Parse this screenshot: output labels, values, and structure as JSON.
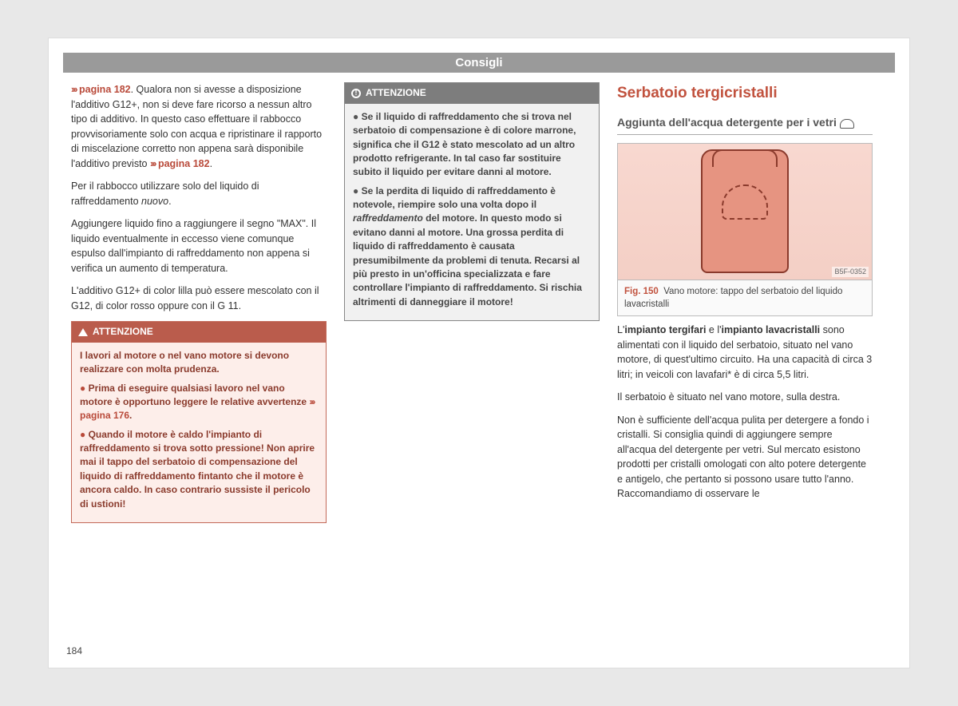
{
  "header": {
    "title": "Consigli"
  },
  "pageNumber": "184",
  "col1": {
    "p1_linkref": "pagina 182",
    "p1_rest": ". Qualora non si avesse a disposizione l'additivo G12+, non si deve fare ricorso a nessun altro tipo di additivo. In questo caso effettuare il rabbocco provvisoriamente solo con acqua e ripristinare il rapporto di miscelazione corretto non appena sarà disponibile l'additivo previsto ",
    "p1_linkref2": "pagina 182",
    "p2a": "Per il rabbocco utilizzare solo del liquido di raffreddamento ",
    "p2b": "nuovo",
    "p2c": ".",
    "p3": "Aggiungere liquido fino a raggiungere il segno \"MAX\". Il liquido eventualmente in eccesso viene comunque espulso dall'impianto di raffreddamento non appena si verifica un aumento di temperatura.",
    "p4": "L'additivo G12+ di color lilla può essere mescolato con il G12, di color rosso oppure con il G 11.",
    "warn": {
      "title": "ATTENZIONE",
      "intro": "I lavori al motore o nel vano motore si devono realizzare con molta prudenza.",
      "b1a": "Prima di eseguire qualsiasi lavoro nel vano motore è opportuno leggere le relative avvertenze ",
      "b1link": "pagina 176",
      "b1b": ".",
      "b2": "Quando il motore è caldo l'impianto di raffreddamento si trova sotto pressione! Non aprire mai il tappo del serbatoio di compensazione del liquido di raffreddamento fintanto che il motore è ancora caldo. In caso contrario sussiste il pericolo di ustioni!"
    }
  },
  "col2": {
    "note": {
      "title": "ATTENZIONE",
      "b1": "Se il liquido di raffreddamento che si trova nel serbatoio di compensazione è di colore marrone, significa che il G12 è stato mescolato ad un altro prodotto refrigerante. In tal caso far sostituire subito il liquido per evitare danni al motore.",
      "b2a": "Se la perdita di liquido di raffreddamento è notevole, riempire solo una volta dopo il ",
      "b2i": "raffreddamento",
      "b2b": " del motore. In questo modo si evitano danni al motore. Una grossa perdita di liquido di raffreddamento è causata presumibilmente da problemi di tenuta. Recarsi al più presto in un'officina specializzata e fare controllare l'impianto di raffreddamento. Si rischia altrimenti di danneggiare il motore!"
    }
  },
  "col3": {
    "section": "Serbatoio tergicristalli",
    "subtitle": "Aggiunta dell'acqua detergente per i vetri",
    "figure": {
      "code": "B5F-0352",
      "num": "Fig. 150",
      "caption": "Vano motore: tappo del serbatoio del liquido lavacristalli"
    },
    "p1a": "L'",
    "p1b": "impianto tergifari",
    "p1c": " e l'",
    "p1d": "impianto lavacristalli",
    "p1e": " sono alimentati con il liquido del serbatoio, situato nel vano motore, di quest'ultimo circuito. Ha una capacità di circa 3 litri; in veicoli con lavafari* è di circa 5,5 litri.",
    "p2": "Il serbatoio è situato nel vano motore, sulla destra.",
    "p3": "Non è sufficiente dell'acqua pulita per detergere a fondo i cristalli. Si consiglia quindi di aggiungere sempre all'acqua del detergente per vetri. Sul mercato esistono prodotti per cristalli omologati con alto potere detergente e antigelo, che pertanto si possono usare tutto l'anno. Raccomandiamo di osservare le"
  }
}
